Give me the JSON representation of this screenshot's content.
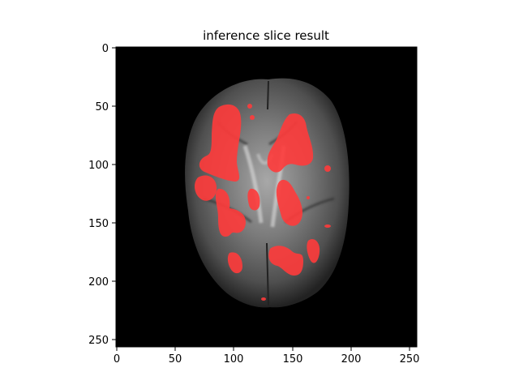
{
  "figure": {
    "title": "inference slice result"
  },
  "image": {
    "background": "#000000",
    "tissue_color": "#5a5a5a",
    "overlay_color": "#ff3b3b",
    "x_ticks": [
      "0",
      "50",
      "100",
      "150",
      "200",
      "250"
    ],
    "y_ticks": [
      "0",
      "50",
      "100",
      "150",
      "200",
      "250"
    ],
    "x_limit": [
      0,
      256
    ],
    "y_limit": [
      256,
      0
    ]
  }
}
